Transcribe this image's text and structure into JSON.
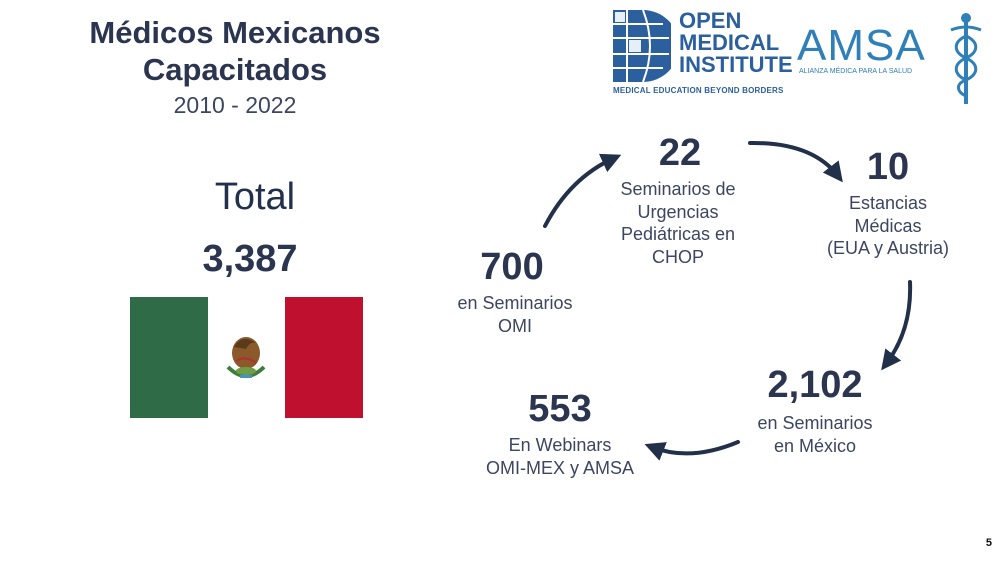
{
  "slide": {
    "title_line1": "Médicos Mexicanos",
    "title_line2": "Capacitados",
    "years": "2010 - 2022",
    "total_label": "Total",
    "total_value": "3,387",
    "page_number": "5"
  },
  "logos": {
    "omi_line1": "OPEN",
    "omi_line2": "MEDICAL",
    "omi_line3": "INSTITUTE",
    "omi_tagline": "MEDICAL EDUCATION BEYOND BORDERS",
    "amsa_name": "AMSA",
    "amsa_tagline": "ALIANZA MÉDICA PARA LA SALUD"
  },
  "stats": {
    "omi": {
      "value": "700",
      "description": "en Seminarios\nOMI"
    },
    "chop": {
      "value": "22",
      "description": "Seminarios de\nUrgencias\nPediátricas en\nCHOP"
    },
    "stays": {
      "value": "10",
      "description": "Estancias\nMédicas\n(EUA y Austria)"
    },
    "mexico": {
      "value": "2,102",
      "description": "en Seminarios\nen México"
    },
    "webinars": {
      "value": "553",
      "description": "En Webinars\nOMI-MEX y AMSA"
    }
  },
  "colors": {
    "navy": "#233049",
    "flag_green": "#2e6b46",
    "flag_red": "#c0102f",
    "omi_blue": "#2b5f9e",
    "amsa_blue": "#2f7fb8"
  }
}
